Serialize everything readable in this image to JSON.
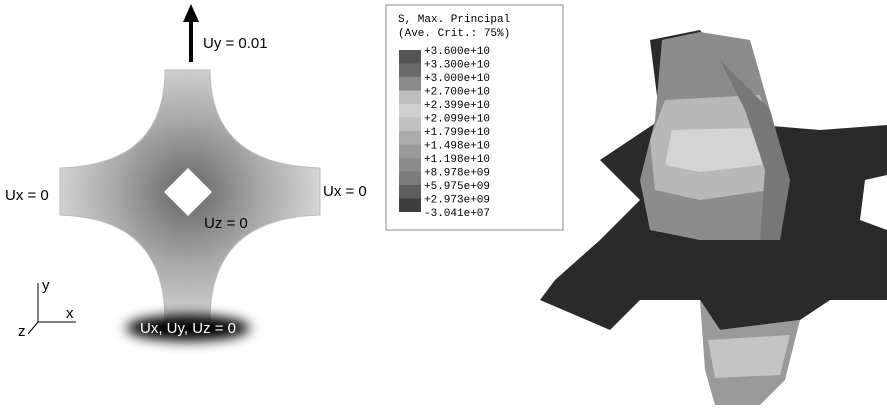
{
  "labels": {
    "top": "Uy = 0.01",
    "left": "Ux = 0",
    "right": "Ux = 0",
    "center": "Uz = 0",
    "bottom": "Ux, Uy, Uz = 0"
  },
  "axes": {
    "y": "y",
    "x": "x",
    "z": "z"
  },
  "legend": {
    "title": "S, Max. Principal",
    "subtitle": "(Ave. Crit.: 75%)",
    "entries": [
      "+3.600e+10",
      "+3.300e+10",
      "+3.000e+10",
      "+2.700e+10",
      "+2.399e+10",
      "+2.099e+10",
      "+1.799e+10",
      "+1.498e+10",
      "+1.198e+10",
      "+8.978e+09",
      "+5.975e+09",
      "+2.973e+09",
      "-3.041e+07"
    ]
  }
}
